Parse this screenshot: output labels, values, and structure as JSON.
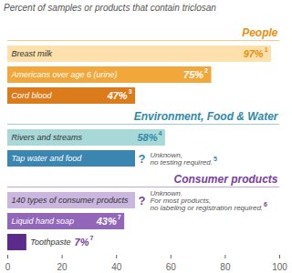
{
  "chart_data": {
    "type": "bar",
    "orientation": "horizontal",
    "title": "Percent of samples or products that contain triclosan",
    "xlim": [
      0,
      100
    ],
    "xticks": [
      0,
      20,
      40,
      60,
      80,
      100
    ],
    "grid": false,
    "data_labels": true,
    "groups": [
      {
        "name": "People",
        "color": "#e8900c",
        "categories": [
          "Breast milk",
          "Americans over age 6 (urine)",
          "Cord blood"
        ],
        "values": [
          97,
          75,
          47
        ],
        "value_labels": [
          "97%",
          "75%",
          "47%"
        ],
        "footnotes": [
          "1",
          "2",
          "3"
        ],
        "annotations": [
          null,
          null,
          null
        ],
        "colors": [
          "#fde0ac",
          "#f2a73a",
          "#db7b1c"
        ]
      },
      {
        "name": "Environment, Food & Water",
        "color": "#2f8aa8",
        "categories": [
          "Rivers and streams",
          "Tap water and food"
        ],
        "values": [
          58,
          null
        ],
        "value_labels": [
          "58%",
          "?"
        ],
        "footnotes": [
          "4",
          "5"
        ],
        "annotations": [
          null,
          "Unknown,\nno testing required."
        ],
        "colors": [
          "#a8d8d8",
          "#3b86b0"
        ]
      },
      {
        "name": "Consumer products",
        "color": "#7a3e9d",
        "categories": [
          "140 types of consumer products",
          "Liquid hand soap",
          "Toothpaste"
        ],
        "values": [
          null,
          43,
          7
        ],
        "value_labels": [
          "?",
          "43%",
          "7%"
        ],
        "footnotes": [
          "6",
          "7",
          "7"
        ],
        "annotations": [
          "Unknown.\nFor most products,\nno labeling or registration required.",
          null,
          null
        ],
        "colors": [
          "#cbb6e0",
          "#9266b8",
          "#5c2a8a"
        ]
      }
    ]
  }
}
